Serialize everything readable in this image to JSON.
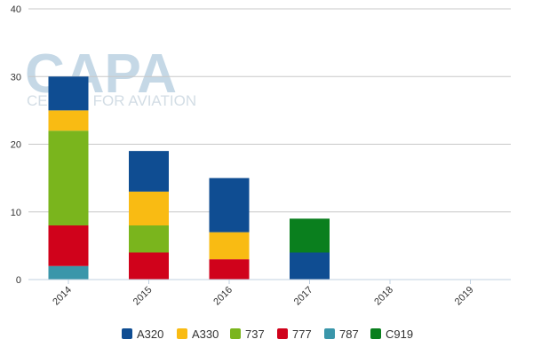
{
  "watermark": {
    "brand": "CAPA",
    "tagline": "CENTRE FOR AVIATION"
  },
  "chart_data": {
    "type": "bar",
    "stacked": true,
    "categories": [
      "2014",
      "2015",
      "2016",
      "2017",
      "2018",
      "2019"
    ],
    "series": [
      {
        "name": "787",
        "color": "#3a96aa",
        "values": [
          2,
          0,
          0,
          0,
          0,
          0
        ]
      },
      {
        "name": "777",
        "color": "#d0021b",
        "values": [
          6,
          4,
          3,
          0,
          0,
          0
        ]
      },
      {
        "name": "737",
        "color": "#7ab51d",
        "values": [
          14,
          4,
          0,
          0,
          0,
          0
        ]
      },
      {
        "name": "A330",
        "color": "#f9bb13",
        "values": [
          3,
          5,
          4,
          0,
          0,
          0
        ]
      },
      {
        "name": "A320",
        "color": "#0f4d92",
        "values": [
          5,
          6,
          8,
          4,
          0,
          0
        ]
      },
      {
        "name": "C919",
        "color": "#0a7f1e",
        "values": [
          0,
          0,
          0,
          5,
          0,
          0
        ]
      }
    ],
    "legend_order": [
      "A320",
      "A330",
      "737",
      "777",
      "787",
      "C919"
    ],
    "yticks": [
      0,
      10,
      20,
      30,
      40
    ],
    "ylim": [
      0,
      40
    ],
    "grid": true,
    "legend_position": "bottom"
  }
}
